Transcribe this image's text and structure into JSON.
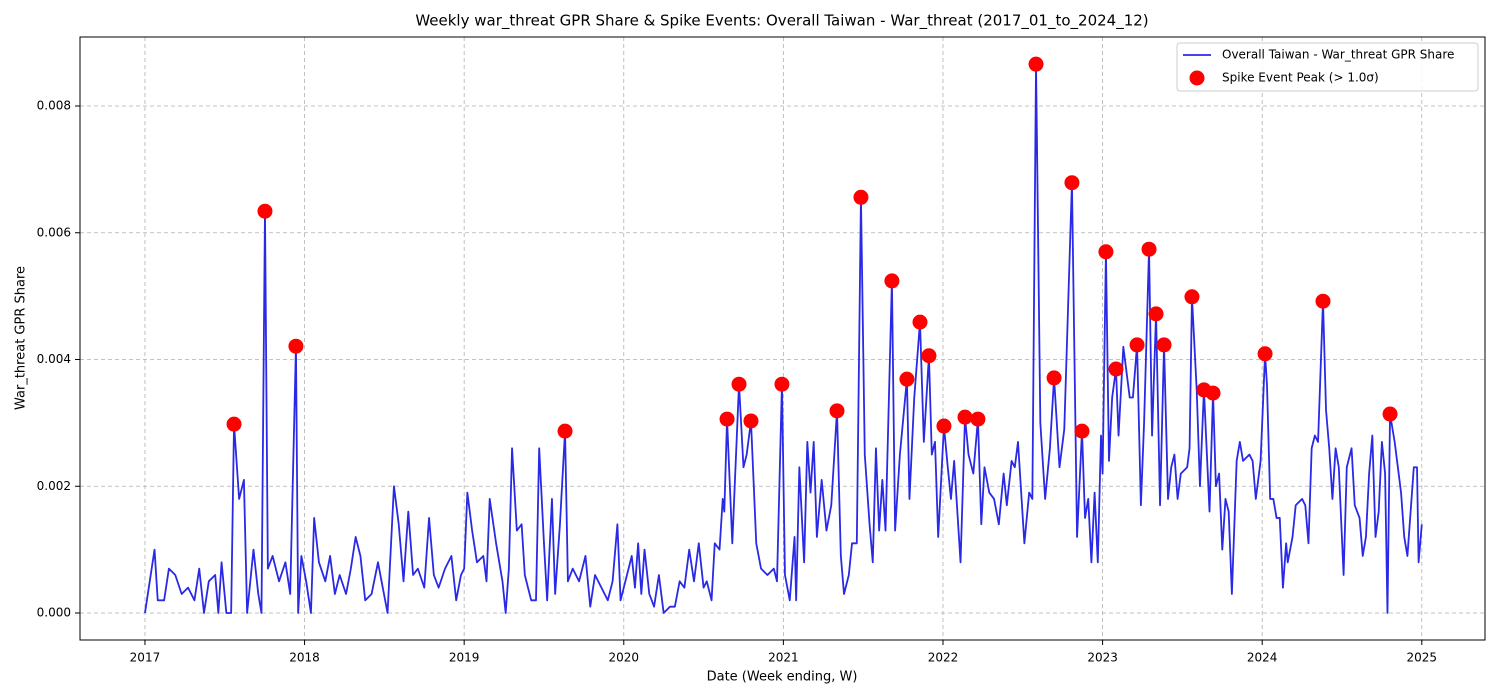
{
  "chart_data": {
    "type": "line",
    "title": "Weekly war_threat GPR Share & Spike Events: Overall Taiwan - War_threat (2017_01_to_2024_12)",
    "x_label": "Date (Week ending, W)",
    "y_label": "War_threat GPR Share",
    "xlim": [
      2016.593,
      2025.396
    ],
    "ylim": [
      -0.000426,
      0.009089
    ],
    "xticks": [
      2017,
      2018,
      2019,
      2020,
      2021,
      2022,
      2023,
      2024,
      2025
    ],
    "yticks": [
      {
        "value": 0,
        "label": "0.000"
      },
      {
        "value": 0.002,
        "label": "0.002"
      },
      {
        "value": 0.004,
        "label": "0.004"
      },
      {
        "value": 0.006,
        "label": "0.006"
      },
      {
        "value": 0.008,
        "label": "0.008"
      }
    ],
    "grid": true,
    "legend": "upper right",
    "series": [
      {
        "name": "Overall Taiwan - War_threat GPR Share",
        "type": "line",
        "color": "#2929e6",
        "x": [
          2017.0,
          2017.03,
          2017.06,
          2017.08,
          2017.12,
          2017.15,
          2017.19,
          2017.23,
          2017.27,
          2017.31,
          2017.34,
          2017.37,
          2017.4,
          2017.44,
          2017.46,
          2017.48,
          2017.51,
          2017.54,
          2017.558,
          2017.59,
          2017.62,
          2017.64,
          2017.68,
          2017.71,
          2017.73,
          2017.752,
          2017.77,
          2017.8,
          2017.84,
          2017.88,
          2017.91,
          2017.946,
          2017.96,
          2017.98,
          2018.01,
          2018.04,
          2018.06,
          2018.09,
          2018.13,
          2018.16,
          2018.19,
          2018.22,
          2018.26,
          2018.29,
          2018.32,
          2018.35,
          2018.38,
          2018.42,
          2018.46,
          2018.49,
          2018.52,
          2018.56,
          2018.59,
          2018.62,
          2018.65,
          2018.68,
          2018.71,
          2018.75,
          2018.78,
          2018.81,
          2018.84,
          2018.88,
          2018.92,
          2018.95,
          2018.98,
          2019.0,
          2019.02,
          2019.05,
          2019.08,
          2019.12,
          2019.14,
          2019.16,
          2019.2,
          2019.24,
          2019.26,
          2019.28,
          2019.3,
          2019.33,
          2019.36,
          2019.38,
          2019.42,
          2019.45,
          2019.47,
          2019.5,
          2019.52,
          2019.55,
          2019.57,
          2019.6,
          2019.632,
          2019.65,
          2019.68,
          2019.72,
          2019.76,
          2019.79,
          2019.82,
          2019.86,
          2019.9,
          2019.93,
          2019.96,
          2019.98,
          2020.01,
          2020.05,
          2020.07,
          2020.09,
          2020.11,
          2020.13,
          2020.16,
          2020.19,
          2020.22,
          2020.25,
          2020.29,
          2020.32,
          2020.35,
          2020.38,
          2020.41,
          2020.44,
          2020.47,
          2020.5,
          2020.52,
          2020.55,
          2020.57,
          2020.6,
          2020.62,
          2020.63,
          2020.647,
          2020.68,
          2020.722,
          2020.75,
          2020.77,
          2020.797,
          2020.83,
          2020.86,
          2020.9,
          2020.94,
          2020.96,
          2020.991,
          2021.01,
          2021.04,
          2021.07,
          2021.08,
          2021.1,
          2021.13,
          2021.15,
          2021.17,
          2021.19,
          2021.21,
          2021.24,
          2021.27,
          2021.3,
          2021.336,
          2021.36,
          2021.38,
          2021.41,
          2021.43,
          2021.46,
          2021.486,
          2021.51,
          2021.54,
          2021.56,
          2021.58,
          2021.6,
          2021.62,
          2021.64,
          2021.68,
          2021.7,
          2021.73,
          2021.774,
          2021.79,
          2021.82,
          2021.856,
          2021.88,
          2021.912,
          2021.93,
          2021.95,
          2021.97,
          2022.006,
          2022.03,
          2022.05,
          2022.07,
          2022.11,
          2022.138,
          2022.16,
          2022.19,
          2022.219,
          2022.24,
          2022.26,
          2022.29,
          2022.32,
          2022.35,
          2022.38,
          2022.4,
          2022.43,
          2022.45,
          2022.47,
          2022.51,
          2022.54,
          2022.56,
          2022.583,
          2022.61,
          2022.64,
          2022.67,
          2022.696,
          2022.73,
          2022.76,
          2022.808,
          2022.84,
          2022.871,
          2022.89,
          2022.91,
          2022.93,
          2022.95,
          2022.97,
          2022.99,
          2023.0,
          2023.021,
          2023.04,
          2023.06,
          2023.084,
          2023.1,
          2023.13,
          2023.17,
          2023.19,
          2023.216,
          2023.24,
          2023.26,
          2023.291,
          2023.31,
          2023.335,
          2023.36,
          2023.385,
          2023.41,
          2023.43,
          2023.45,
          2023.47,
          2023.49,
          2023.53,
          2023.545,
          2023.56,
          2023.59,
          2023.61,
          2023.635,
          2023.67,
          2023.692,
          2023.71,
          2023.73,
          2023.75,
          2023.77,
          2023.79,
          2023.81,
          2023.84,
          2023.86,
          2023.88,
          2023.92,
          2023.94,
          2023.96,
          2023.99,
          2024.0,
          2024.018,
          2024.03,
          2024.05,
          2024.07,
          2024.09,
          2024.11,
          2024.13,
          2024.15,
          2024.16,
          2024.19,
          2024.21,
          2024.25,
          2024.27,
          2024.29,
          2024.31,
          2024.33,
          2024.35,
          2024.381,
          2024.4,
          2024.42,
          2024.44,
          2024.46,
          2024.48,
          2024.51,
          2024.53,
          2024.56,
          2024.58,
          2024.61,
          2024.63,
          2024.65,
          2024.67,
          2024.69,
          2024.71,
          2024.73,
          2024.75,
          2024.77,
          2024.785,
          2024.801,
          2024.83,
          2024.85,
          2024.87,
          2024.89,
          2024.91,
          2024.93,
          2024.95,
          2024.97,
          2024.98,
          2025.0
        ],
        "values": [
          0,
          0.0005,
          0.001,
          0.0002,
          0.0002,
          0.0007,
          0.0006,
          0.0003,
          0.0004,
          0.0002,
          0.0007,
          0,
          0.0005,
          0.0006,
          0,
          0.0008,
          0,
          0,
          0.00298,
          0.0018,
          0.0021,
          0,
          0.001,
          0.0003,
          0,
          0.00634,
          0.0007,
          0.0009,
          0.0005,
          0.0008,
          0.0003,
          0.00421,
          0,
          0.0009,
          0.0005,
          0,
          0.0015,
          0.0008,
          0.0005,
          0.0009,
          0.0003,
          0.0006,
          0.0003,
          0.0007,
          0.0012,
          0.0009,
          0.0002,
          0.0003,
          0.0008,
          0.0004,
          0,
          0.002,
          0.0014,
          0.0005,
          0.0016,
          0.0006,
          0.0007,
          0.0004,
          0.0015,
          0.0006,
          0.0004,
          0.0007,
          0.0009,
          0.0002,
          0.0006,
          0.0007,
          0.0019,
          0.0013,
          0.0008,
          0.0009,
          0.0005,
          0.0018,
          0.0011,
          0.0005,
          0,
          0.0007,
          0.0026,
          0.0013,
          0.0014,
          0.0006,
          0.0002,
          0.0002,
          0.0026,
          0.0011,
          0.0002,
          0.0018,
          0.0003,
          0.0014,
          0.00287,
          0.0005,
          0.0007,
          0.0005,
          0.0009,
          0.0001,
          0.0006,
          0.0004,
          0.0002,
          0.0005,
          0.0014,
          0.0002,
          0.0005,
          0.0009,
          0.0004,
          0.0011,
          0.0003,
          0.001,
          0.0003,
          0.0001,
          0.0006,
          0,
          0.0001,
          0.0001,
          0.0005,
          0.0004,
          0.001,
          0.0005,
          0.0011,
          0.0004,
          0.0005,
          0.0002,
          0.0011,
          0.001,
          0.0018,
          0.0016,
          0.00306,
          0.0011,
          0.00361,
          0.0023,
          0.0025,
          0.00303,
          0.0011,
          0.0007,
          0.0006,
          0.0007,
          0.0005,
          0.00361,
          0.0006,
          0.0002,
          0.0012,
          0.0002,
          0.0023,
          0.0008,
          0.0027,
          0.0019,
          0.0027,
          0.0012,
          0.0021,
          0.0013,
          0.0017,
          0.00319,
          0.0009,
          0.0003,
          0.0006,
          0.0011,
          0.0011,
          0.00656,
          0.0025,
          0.0014,
          0.0008,
          0.0026,
          0.0013,
          0.0021,
          0.0013,
          0.00524,
          0.0013,
          0.0025,
          0.00369,
          0.0018,
          0.0034,
          0.00459,
          0.0027,
          0.00406,
          0.0025,
          0.0027,
          0.0012,
          0.00295,
          0.0023,
          0.0018,
          0.0024,
          0.0008,
          0.00309,
          0.0025,
          0.0022,
          0.00306,
          0.0014,
          0.0023,
          0.0019,
          0.0018,
          0.0014,
          0.0022,
          0.0017,
          0.0024,
          0.0023,
          0.0027,
          0.0011,
          0.0019,
          0.0018,
          0.00866,
          0.003,
          0.0018,
          0.0026,
          0.00371,
          0.0023,
          0.0029,
          0.00679,
          0.0012,
          0.00287,
          0.0015,
          0.0018,
          0.0008,
          0.0019,
          0.0008,
          0.0028,
          0.0022,
          0.0057,
          0.0024,
          0.0034,
          0.00385,
          0.0028,
          0.0042,
          0.0034,
          0.0034,
          0.00423,
          0.0017,
          0.003,
          0.00574,
          0.0028,
          0.00472,
          0.0017,
          0.00423,
          0.0018,
          0.0023,
          0.0025,
          0.0018,
          0.0022,
          0.0023,
          0.0026,
          0.00499,
          0.0035,
          0.002,
          0.00352,
          0.0016,
          0.00347,
          0.002,
          0.0022,
          0.001,
          0.0018,
          0.0016,
          0.0003,
          0.0024,
          0.0027,
          0.0024,
          0.0025,
          0.0024,
          0.0018,
          0.0024,
          0.003,
          0.00409,
          0.0036,
          0.0018,
          0.0018,
          0.0015,
          0.0015,
          0.0004,
          0.0011,
          0.0008,
          0.0012,
          0.0017,
          0.0018,
          0.0017,
          0.0011,
          0.0026,
          0.0028,
          0.0027,
          0.00492,
          0.0032,
          0.0026,
          0.0018,
          0.0026,
          0.0023,
          0.0006,
          0.0023,
          0.0026,
          0.0017,
          0.0015,
          0.0009,
          0.0012,
          0.0022,
          0.0028,
          0.0012,
          0.0016,
          0.0027,
          0.0022,
          0,
          0.00314,
          0.0027,
          0.0023,
          0.0019,
          0.0012,
          0.0009,
          0.0016,
          0.0023,
          0.0023,
          0.0008,
          0.0014
        ]
      },
      {
        "name": "Spike Event Peak (> 1.0σ)",
        "type": "scatter",
        "color": "#ff0000",
        "x": [
          2017.558,
          2017.752,
          2017.946,
          2019.632,
          2020.647,
          2020.722,
          2020.797,
          2020.991,
          2021.336,
          2021.486,
          2021.68,
          2021.774,
          2021.856,
          2021.912,
          2022.006,
          2022.138,
          2022.219,
          2022.583,
          2022.696,
          2022.808,
          2022.871,
          2023.021,
          2023.084,
          2023.216,
          2023.291,
          2023.335,
          2023.385,
          2023.56,
          2023.635,
          2023.692,
          2024.018,
          2024.381,
          2024.801
        ],
        "values": [
          0.00298,
          0.00634,
          0.00421,
          0.00287,
          0.00306,
          0.00361,
          0.00303,
          0.00361,
          0.00319,
          0.00656,
          0.00524,
          0.00369,
          0.00459,
          0.00406,
          0.00295,
          0.00309,
          0.00306,
          0.00866,
          0.00371,
          0.00679,
          0.00287,
          0.0057,
          0.00385,
          0.00423,
          0.00574,
          0.00472,
          0.00423,
          0.00499,
          0.00352,
          0.00347,
          0.00409,
          0.00492,
          0.00314
        ]
      }
    ]
  }
}
